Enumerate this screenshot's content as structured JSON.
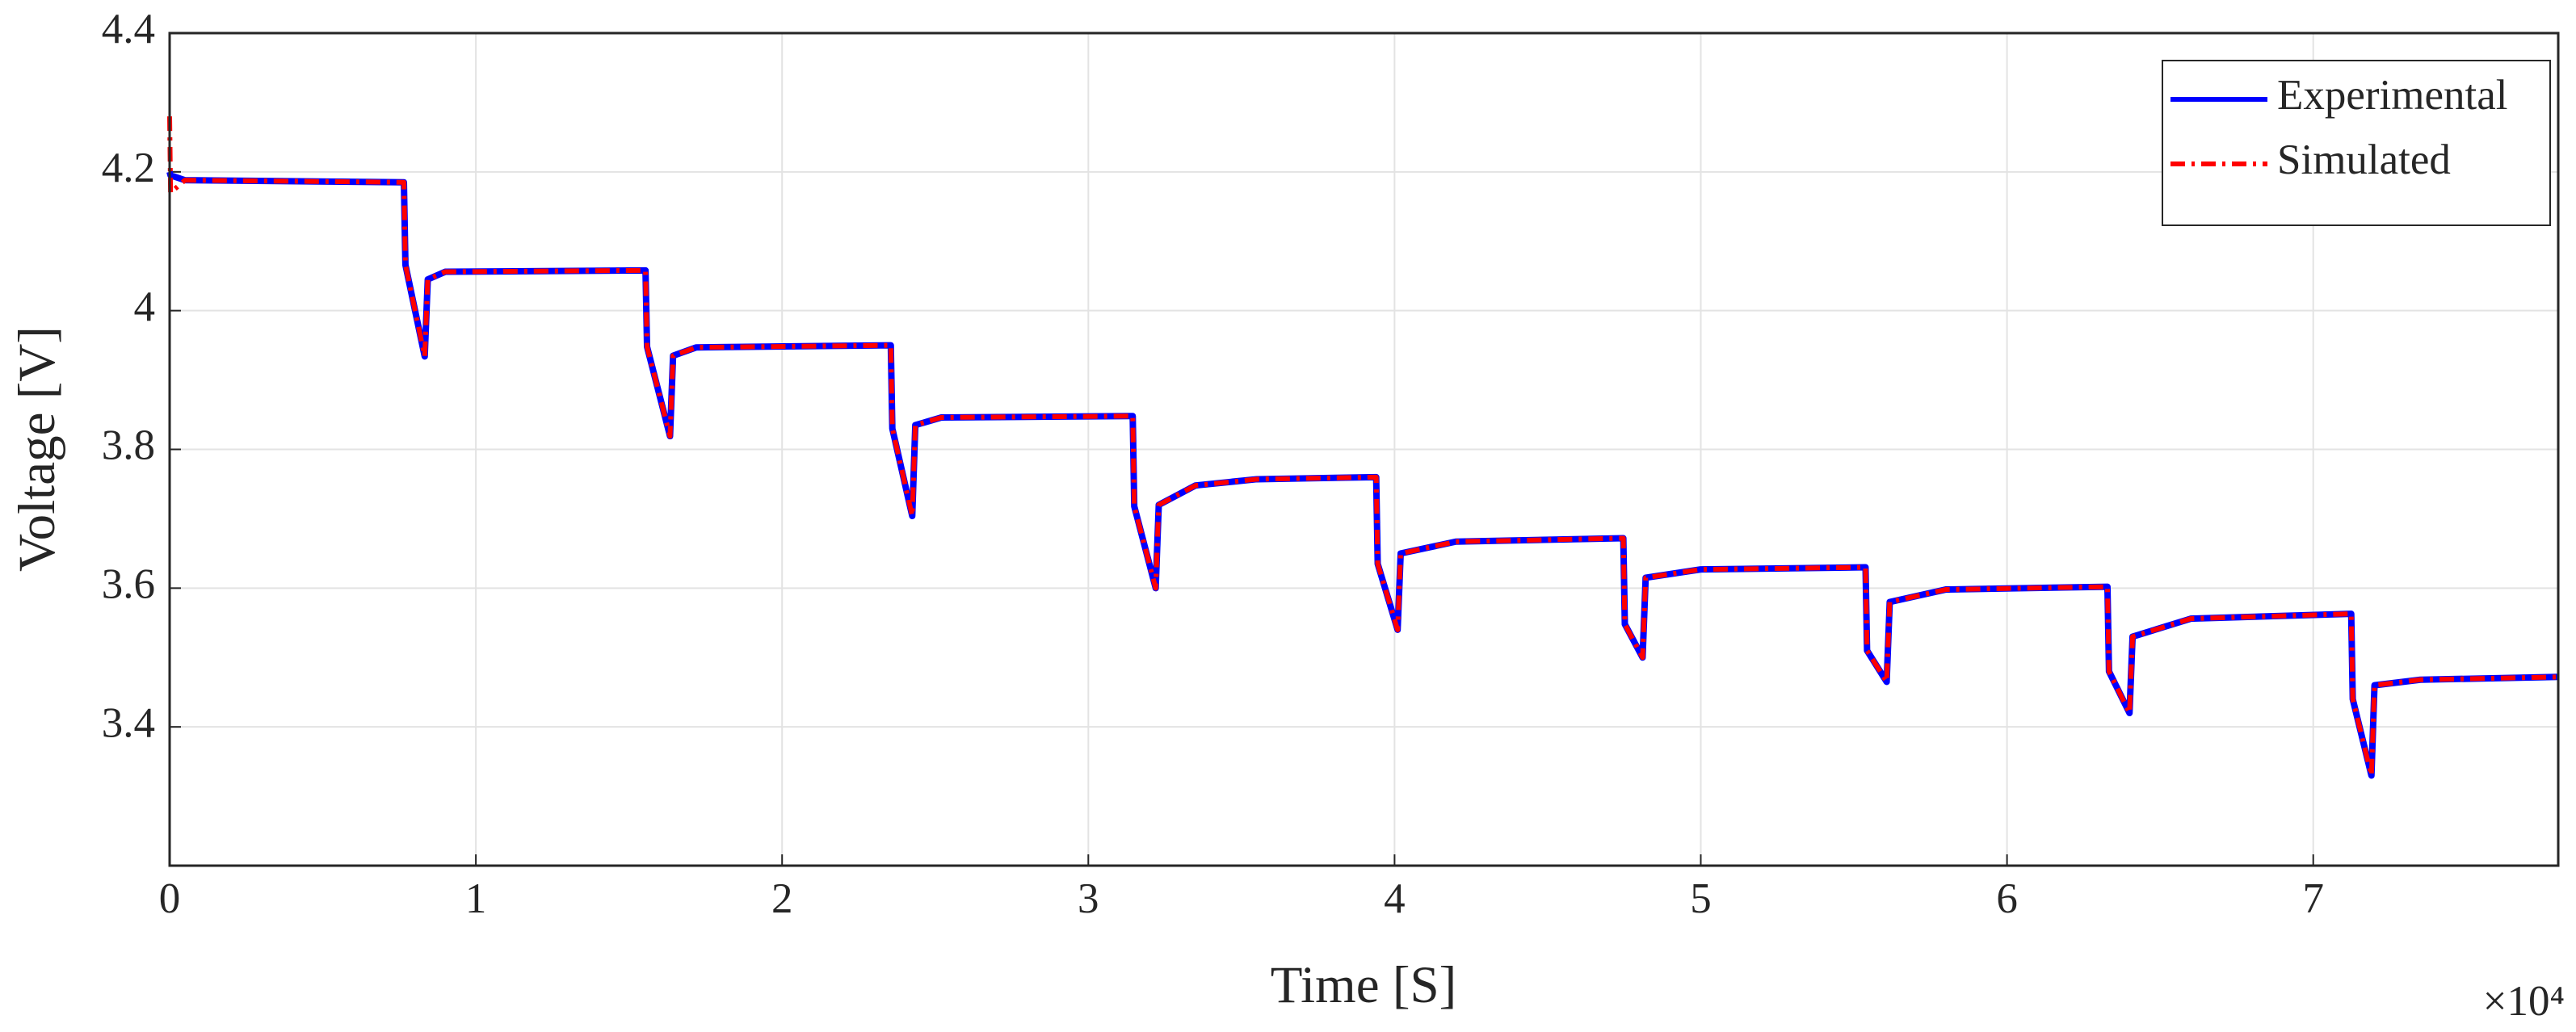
{
  "chart_data": {
    "type": "line",
    "x_label": "Time [S]",
    "y_label": "Voltage [V]",
    "x_multiplier": "×10⁴",
    "x": [
      0,
      0.003,
      0.05,
      0.765,
      0.77,
      0.833,
      0.843,
      0.9,
      1.554,
      1.559,
      1.634,
      1.644,
      1.72,
      2.355,
      2.36,
      2.425,
      2.435,
      2.52,
      3.145,
      3.15,
      3.22,
      3.23,
      3.35,
      3.55,
      3.94,
      3.945,
      4.01,
      4.02,
      4.2,
      4.747,
      4.752,
      4.81,
      4.82,
      5.0,
      5.538,
      5.543,
      5.607,
      5.617,
      5.8,
      6.328,
      6.333,
      6.4,
      6.41,
      6.6,
      7.124,
      7.129,
      7.19,
      7.2,
      7.35,
      7.8
    ],
    "series": [
      {
        "name": "Experimental",
        "color": "#0000ff",
        "dash": "solid",
        "values": [
          4.2,
          4.195,
          4.188,
          4.185,
          4.066,
          3.934,
          4.045,
          4.056,
          4.058,
          3.948,
          3.819,
          3.935,
          3.947,
          3.95,
          3.83,
          3.704,
          3.835,
          3.846,
          3.848,
          3.718,
          3.6,
          3.72,
          3.748,
          3.757,
          3.76,
          3.635,
          3.54,
          3.65,
          3.667,
          3.672,
          3.548,
          3.5,
          3.615,
          3.627,
          3.63,
          3.51,
          3.465,
          3.58,
          3.598,
          3.602,
          3.48,
          3.42,
          3.53,
          3.556,
          3.563,
          3.44,
          3.33,
          3.46,
          3.468,
          3.472
        ]
      },
      {
        "name": "Simulated",
        "color": "#ff0000",
        "dash": "dashdot",
        "values": [
          4.28,
          4.17,
          4.188,
          4.185,
          4.066,
          3.934,
          4.045,
          4.056,
          4.058,
          3.948,
          3.819,
          3.935,
          3.947,
          3.95,
          3.83,
          3.704,
          3.835,
          3.846,
          3.848,
          3.718,
          3.6,
          3.72,
          3.748,
          3.757,
          3.76,
          3.635,
          3.54,
          3.65,
          3.667,
          3.672,
          3.548,
          3.5,
          3.615,
          3.627,
          3.63,
          3.51,
          3.465,
          3.58,
          3.598,
          3.602,
          3.48,
          3.42,
          3.53,
          3.556,
          3.563,
          3.44,
          3.33,
          3.46,
          3.468,
          3.472
        ]
      }
    ],
    "xlim": [
      0,
      7.8
    ],
    "xticks": [
      0,
      1,
      2,
      3,
      4,
      5,
      6,
      7
    ],
    "ylim": [
      3.2,
      4.4
    ],
    "yticks": [
      3.4,
      3.6,
      3.8,
      4,
      4.2,
      4.4
    ],
    "grid": true,
    "legend": "top-right"
  }
}
